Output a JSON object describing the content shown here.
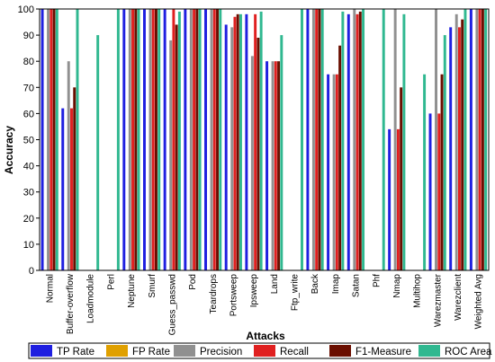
{
  "chart_data": {
    "type": "bar",
    "title": "",
    "xlabel": "Attacks",
    "ylabel": "Accuracy",
    "ylim": [
      0,
      100
    ],
    "yticks": [
      0,
      10,
      20,
      30,
      40,
      50,
      60,
      70,
      80,
      90,
      100
    ],
    "grid": false,
    "legend_position": "bottom",
    "categories": [
      "Normal",
      "Buffer-overflow",
      "Loadmodule",
      "Perl",
      "Neptune",
      "Smurf",
      "Guess_passwd",
      "Pod",
      "Teardrops",
      "Portsweep",
      "Ipsweep",
      "Land",
      "Ftp_write",
      "Back",
      "Imap",
      "Satan",
      "Phf",
      "Nmap",
      "Multihop",
      "Warezmaster",
      "Warezclient",
      "Weighted Avg"
    ],
    "series": [
      {
        "name": "TP Rate",
        "color": "#1f1fe0",
        "values": [
          100,
          62,
          0,
          0,
          100,
          100,
          100,
          100,
          100,
          94,
          98,
          80,
          0,
          100,
          75,
          98,
          0,
          54,
          0,
          60,
          93,
          100
        ]
      },
      {
        "name": "FP Rate",
        "color": "#e0a000",
        "values": [
          0,
          0,
          0,
          0,
          0,
          0,
          0,
          0,
          0,
          0,
          0,
          0,
          0,
          0,
          0,
          0,
          0,
          0,
          0,
          0,
          0,
          0
        ]
      },
      {
        "name": "Precision",
        "color": "#909090",
        "values": [
          100,
          80,
          0,
          0,
          100,
          100,
          88,
          100,
          100,
          93,
          82,
          80,
          0,
          100,
          75,
          100,
          0,
          100,
          0,
          100,
          98,
          100
        ]
      },
      {
        "name": "Recall",
        "color": "#e02020",
        "values": [
          100,
          62,
          0,
          0,
          100,
          100,
          100,
          100,
          100,
          97,
          98,
          80,
          0,
          100,
          75,
          98,
          0,
          54,
          0,
          60,
          93,
          100
        ]
      },
      {
        "name": "F1-Measure",
        "color": "#6a0e00",
        "values": [
          100,
          70,
          0,
          0,
          100,
          100,
          94,
          100,
          100,
          98,
          89,
          80,
          0,
          100,
          86,
          99,
          0,
          70,
          0,
          75,
          96,
          100
        ]
      },
      {
        "name": "ROC Area",
        "color": "#30b890",
        "values": [
          100,
          100,
          90,
          100,
          100,
          100,
          99,
          100,
          100,
          98,
          99,
          90,
          100,
          100,
          99,
          100,
          100,
          98,
          75,
          90,
          100,
          100
        ]
      }
    ]
  }
}
